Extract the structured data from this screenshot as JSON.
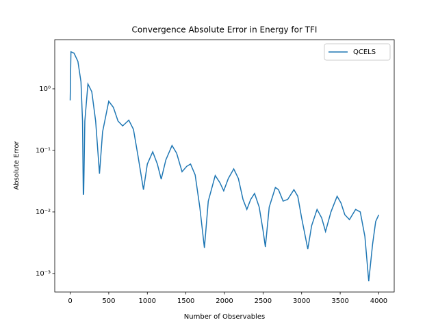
{
  "chart_data": {
    "type": "line",
    "title": "Convergence Absolute Error in Energy for TFI",
    "x_label": "Number of Observables",
    "y_label": "Absolute Error",
    "x": [
      0,
      10,
      50,
      100,
      140,
      160,
      170,
      175,
      190,
      230,
      280,
      330,
      380,
      420,
      500,
      560,
      620,
      680,
      760,
      820,
      880,
      950,
      1000,
      1070,
      1130,
      1180,
      1240,
      1320,
      1380,
      1450,
      1510,
      1560,
      1620,
      1680,
      1740,
      1790,
      1880,
      1940,
      1990,
      2050,
      2120,
      2180,
      2240,
      2290,
      2340,
      2390,
      2450,
      2500,
      2530,
      2580,
      2660,
      2700,
      2760,
      2820,
      2900,
      2950,
      3000,
      3080,
      3130,
      3200,
      3260,
      3310,
      3380,
      3460,
      3510,
      3560,
      3620,
      3700,
      3760,
      3820,
      3870,
      3920,
      3960,
      4000
    ],
    "series": [
      {
        "name": "QCELS",
        "color": "#1f77b4",
        "values": [
          0.65,
          4.0,
          3.8,
          2.8,
          1.3,
          0.3,
          0.019,
          0.02,
          0.3,
          1.2,
          0.9,
          0.3,
          0.042,
          0.2,
          0.63,
          0.5,
          0.3,
          0.25,
          0.31,
          0.22,
          0.08,
          0.023,
          0.06,
          0.095,
          0.06,
          0.034,
          0.07,
          0.12,
          0.09,
          0.045,
          0.055,
          0.06,
          0.04,
          0.012,
          0.0026,
          0.015,
          0.039,
          0.03,
          0.022,
          0.035,
          0.05,
          0.035,
          0.016,
          0.011,
          0.016,
          0.02,
          0.012,
          0.005,
          0.0027,
          0.012,
          0.025,
          0.023,
          0.015,
          0.016,
          0.023,
          0.018,
          0.008,
          0.0025,
          0.006,
          0.011,
          0.008,
          0.0048,
          0.01,
          0.018,
          0.014,
          0.009,
          0.0075,
          0.011,
          0.01,
          0.004,
          0.00075,
          0.003,
          0.007,
          0.009
        ]
      }
    ],
    "xlim": [
      -200,
      4200
    ],
    "xticks": [
      0,
      500,
      1000,
      1500,
      2000,
      2500,
      3000,
      3500,
      4000
    ],
    "ylim": [
      0.0005,
      6.3
    ],
    "yticks": [
      {
        "value": 0.001,
        "label": "10⁻³"
      },
      {
        "value": 0.01,
        "label": "10⁻²"
      },
      {
        "value": 0.1,
        "label": "10⁻¹"
      },
      {
        "value": 1,
        "label": "10⁰"
      }
    ],
    "y_scale": "log",
    "grid": false,
    "legend_position": "upper-right"
  }
}
